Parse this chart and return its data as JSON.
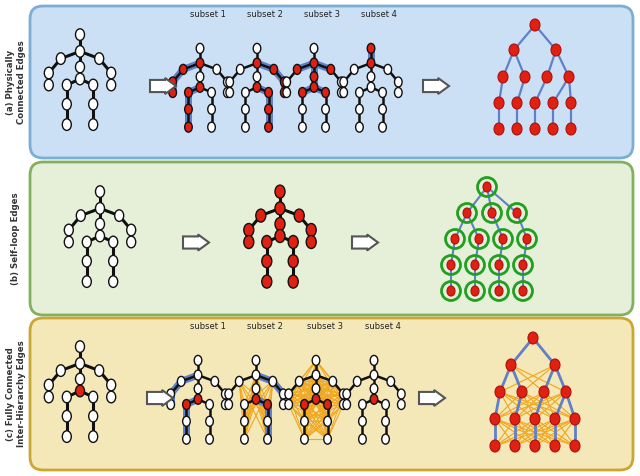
{
  "panel_a_bg": "#cce0f5",
  "panel_b_bg": "#e6efd8",
  "panel_c_bg": "#f5e8b8",
  "panel_border_a": "#7aaed4",
  "panel_border_b": "#80b060",
  "panel_border_c": "#c8a832",
  "node_red": "#e02010",
  "node_white": "white",
  "edge_black": "#111111",
  "edge_blue": "#6080c8",
  "edge_green": "#20a020",
  "edge_yellow": "#f0a820",
  "label_a": "(a) Physically\nConnected Edges",
  "label_b": "(b) Self-loop Edges",
  "label_c": "(c) Fully Connected\nInter-Hierarchy Edges",
  "subset_labels": [
    "subset 1",
    "subset 2",
    "subset 3",
    "subset 4"
  ],
  "bg_white": "#ffffff"
}
